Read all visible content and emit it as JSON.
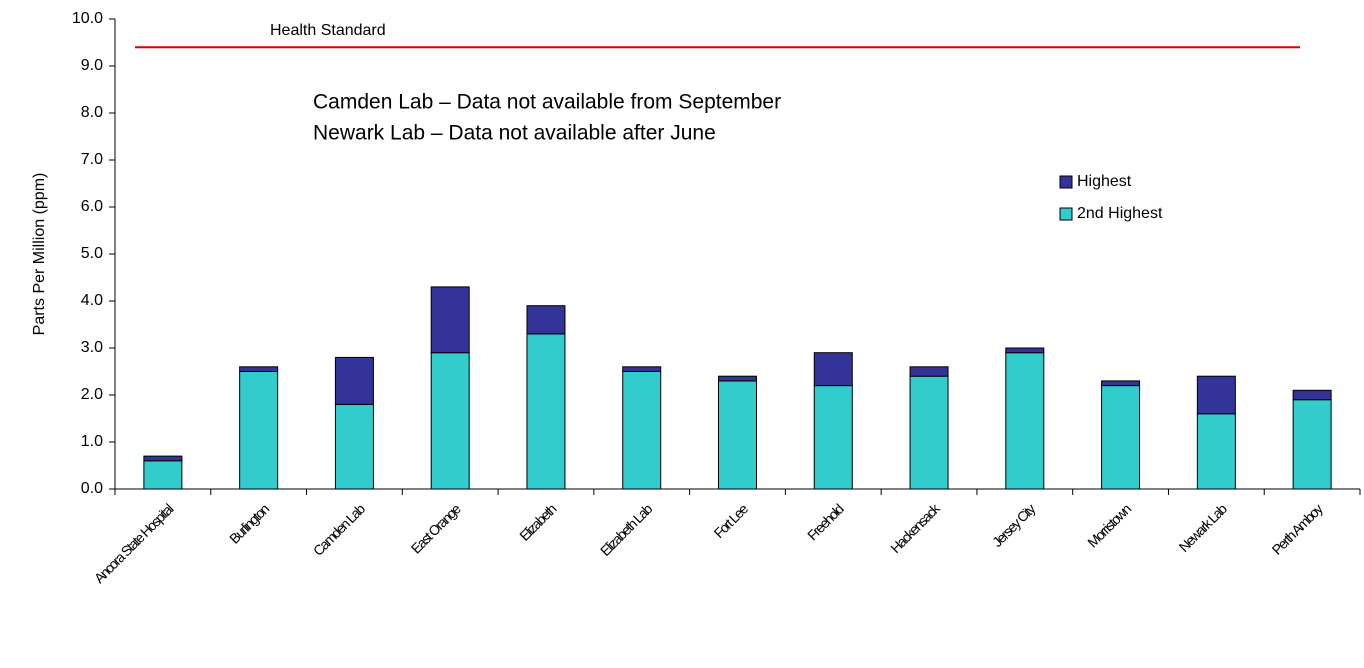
{
  "chart_data": {
    "type": "stacked_bar",
    "y_label": "Parts Per Million (ppm)",
    "categories": [
      "Ancora State Hospital",
      "Burlington",
      "Camden Lab",
      "East Orange",
      "Elizabeth",
      "Elizabeth Lab",
      "Fort Lee",
      "Freehold",
      "Hackensack",
      "Jersey City",
      "Morristown",
      "Newark Lab",
      "Perth Amboy"
    ],
    "series": [
      {
        "name": "2nd Highest",
        "color": "#33cccc",
        "values": [
          0.6,
          2.5,
          1.8,
          2.9,
          3.3,
          2.5,
          2.3,
          2.2,
          2.4,
          2.9,
          2.2,
          1.6,
          1.9
        ]
      },
      {
        "name": "Highest",
        "color": "#333399",
        "values": [
          0.1,
          0.1,
          1.0,
          1.4,
          0.6,
          0.1,
          0.1,
          0.7,
          0.2,
          0.1,
          0.1,
          0.8,
          0.2
        ]
      }
    ],
    "ylim": [
      0,
      10
    ],
    "yticks": [
      {
        "value": 0,
        "label": "0.0"
      },
      {
        "value": 1,
        "label": "1.0"
      },
      {
        "value": 2,
        "label": "2.0"
      },
      {
        "value": 3,
        "label": "3.0"
      },
      {
        "value": 4,
        "label": "4.0"
      },
      {
        "value": 5,
        "label": "5.0"
      },
      {
        "value": 6,
        "label": "6.0"
      },
      {
        "value": 7,
        "label": "7.0"
      },
      {
        "value": 8,
        "label": "8.0"
      },
      {
        "value": 9,
        "label": "9.0"
      },
      {
        "value": 10,
        "label": "10.0"
      }
    ],
    "reference_line": {
      "label": "Health Standard",
      "value": 9.4,
      "color": "#dd0000"
    },
    "annotations": [
      "Camden Lab – Data not available from September",
      "Newark Lab – Data not available after June"
    ],
    "legend": "right"
  }
}
